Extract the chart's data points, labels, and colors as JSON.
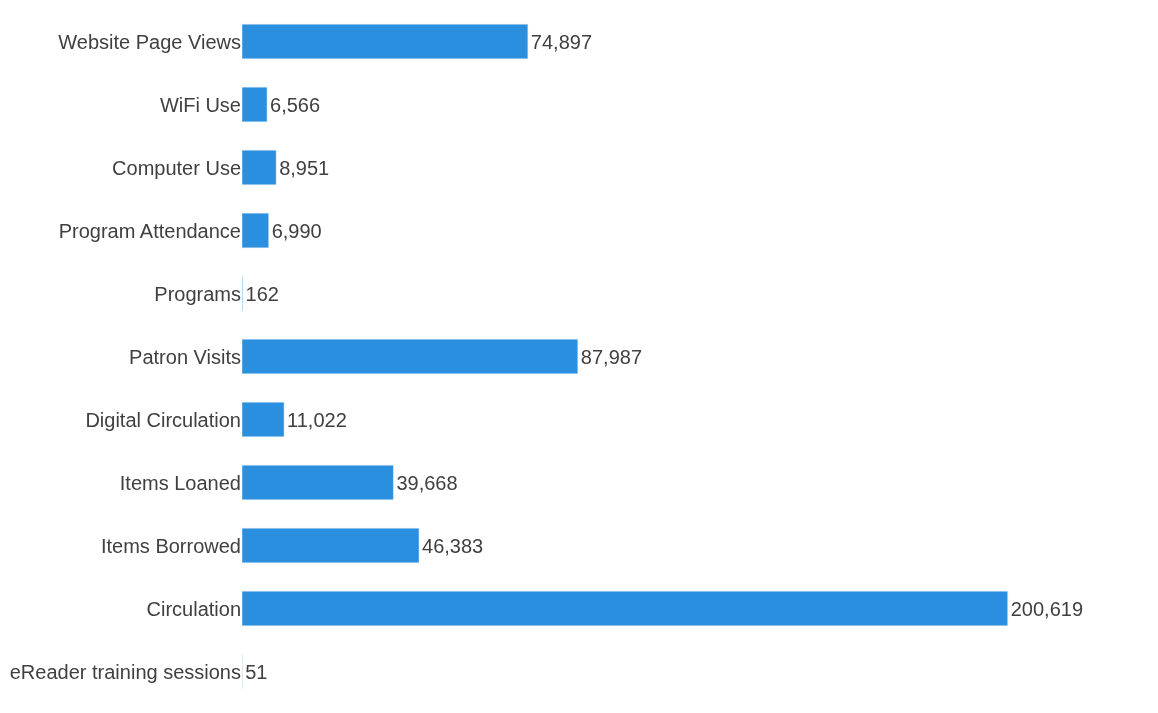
{
  "chart_data": {
    "type": "bar",
    "orientation": "horizontal",
    "categories": [
      "Website Page Views",
      "WiFi Use",
      "Computer Use",
      "Program Attendance",
      "Programs",
      "Patron Visits",
      "Digital Circulation",
      "Items Loaned",
      "Items Borrowed",
      "Circulation",
      "eReader training sessions"
    ],
    "values": [
      74897,
      6566,
      8951,
      6990,
      162,
      87987,
      11022,
      39668,
      46383,
      200619,
      51
    ],
    "value_labels": [
      "74,897",
      "6,566",
      "8,951",
      "6,990",
      "162",
      "87,987",
      "11,022",
      "39,668",
      "46,383",
      "200,619",
      "51"
    ],
    "color": "#2b8fe0"
  }
}
